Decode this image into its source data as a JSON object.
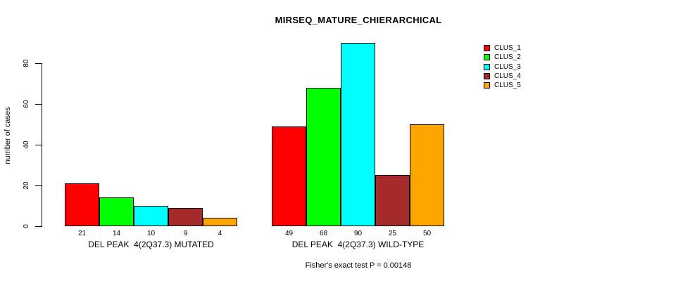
{
  "title": "MIRSEQ_MATURE_CHIERARCHICAL",
  "footer": "Fisher's exact test P = 0.00148",
  "y_axis": {
    "label": "number of cases",
    "ticks": [
      0,
      20,
      40,
      60,
      80
    ]
  },
  "legend": {
    "items": [
      {
        "label": "CLUS_1",
        "color": "#FF0000"
      },
      {
        "label": "CLUS_2",
        "color": "#00FF00"
      },
      {
        "label": "CLUS_3",
        "color": "#00FFFF"
      },
      {
        "label": "CLUS_4",
        "color": "#A52A2A"
      },
      {
        "label": "CLUS_5",
        "color": "#FFA500"
      }
    ]
  },
  "chart_data": {
    "type": "bar",
    "title": "MIRSEQ_MATURE_CHIERARCHICAL",
    "xlabel": "",
    "ylabel": "number of cases",
    "ylim": [
      0,
      90
    ],
    "yticks": [
      0,
      20,
      40,
      60,
      80
    ],
    "grid": false,
    "legend_position": "topright",
    "categories": [
      "DEL PEAK  4(2Q37.3) MUTATED",
      "DEL PEAK  4(2Q37.3) WILD-TYPE"
    ],
    "series": [
      {
        "name": "CLUS_1",
        "color": "#FF0000",
        "values": [
          21,
          49
        ]
      },
      {
        "name": "CLUS_2",
        "color": "#00FF00",
        "values": [
          14,
          68
        ]
      },
      {
        "name": "CLUS_3",
        "color": "#00FFFF",
        "values": [
          10,
          90
        ]
      },
      {
        "name": "CLUS_4",
        "color": "#A52A2A",
        "values": [
          9,
          25
        ]
      },
      {
        "name": "CLUS_5",
        "color": "#FFA500",
        "values": [
          4,
          50
        ]
      }
    ],
    "bar_value_labels": [
      [
        21,
        14,
        10,
        9,
        4
      ],
      [
        49,
        68,
        90,
        25,
        50
      ]
    ],
    "annotation": "Fisher's exact test P = 0.00148"
  }
}
